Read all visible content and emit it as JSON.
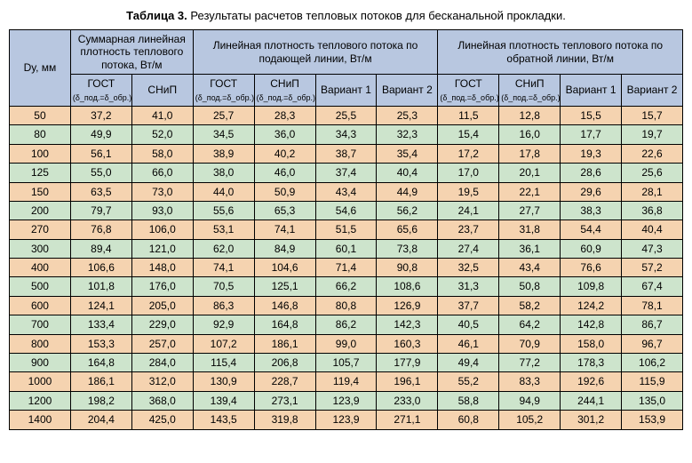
{
  "title_label": "Таблица 3.",
  "title_text": "Результаты расчетов тепловых потоков для бесканальной прокладки.",
  "headers": {
    "dy": "Dу, мм",
    "group1": "Суммарная линейная плотность теплового потока, Вт/м",
    "group2": "Линейная плотность теплового потока по подающей линии, Вт/м",
    "group3": "Линейная плотность теплового потока по обратной линии, Вт/м",
    "gost": "ГОСТ",
    "gost_sub": "(δ_под.=δ_обр.)",
    "snip": "СНиП",
    "snip_sub": "(δ_под.=δ_обр.)",
    "var1": "Вариант 1",
    "var2": "Вариант 2"
  },
  "columns_count": 11,
  "row_colors": {
    "odd": "#f5d3b0",
    "even": "#cde4cc"
  },
  "header_bg": "#b8c7e0",
  "rows": [
    [
      "50",
      "37,2",
      "41,0",
      "25,7",
      "28,3",
      "25,5",
      "25,3",
      "11,5",
      "12,8",
      "15,5",
      "15,7"
    ],
    [
      "80",
      "49,9",
      "52,0",
      "34,5",
      "36,0",
      "34,3",
      "32,3",
      "15,4",
      "16,0",
      "17,7",
      "19,7"
    ],
    [
      "100",
      "56,1",
      "58,0",
      "38,9",
      "40,2",
      "38,7",
      "35,4",
      "17,2",
      "17,8",
      "19,3",
      "22,6"
    ],
    [
      "125",
      "55,0",
      "66,0",
      "38,0",
      "46,0",
      "37,4",
      "40,4",
      "17,0",
      "20,1",
      "28,6",
      "25,6"
    ],
    [
      "150",
      "63,5",
      "73,0",
      "44,0",
      "50,9",
      "43,4",
      "44,9",
      "19,5",
      "22,1",
      "29,6",
      "28,1"
    ],
    [
      "200",
      "79,7",
      "93,0",
      "55,6",
      "65,3",
      "54,6",
      "56,2",
      "24,1",
      "27,7",
      "38,3",
      "36,8"
    ],
    [
      "270",
      "76,8",
      "106,0",
      "53,1",
      "74,1",
      "51,5",
      "65,6",
      "23,7",
      "31,8",
      "54,4",
      "40,4"
    ],
    [
      "300",
      "89,4",
      "121,0",
      "62,0",
      "84,9",
      "60,1",
      "73,8",
      "27,4",
      "36,1",
      "60,9",
      "47,3"
    ],
    [
      "400",
      "106,6",
      "148,0",
      "74,1",
      "104,6",
      "71,4",
      "90,8",
      "32,5",
      "43,4",
      "76,6",
      "57,2"
    ],
    [
      "500",
      "101,8",
      "176,0",
      "70,5",
      "125,1",
      "66,2",
      "108,6",
      "31,3",
      "50,8",
      "109,8",
      "67,4"
    ],
    [
      "600",
      "124,1",
      "205,0",
      "86,3",
      "146,8",
      "80,8",
      "126,9",
      "37,7",
      "58,2",
      "124,2",
      "78,1"
    ],
    [
      "700",
      "133,4",
      "229,0",
      "92,9",
      "164,8",
      "86,2",
      "142,3",
      "40,5",
      "64,2",
      "142,8",
      "86,7"
    ],
    [
      "800",
      "153,3",
      "257,0",
      "107,2",
      "186,1",
      "99,0",
      "160,3",
      "46,1",
      "70,9",
      "158,0",
      "96,7"
    ],
    [
      "900",
      "164,8",
      "284,0",
      "115,4",
      "206,8",
      "105,7",
      "177,9",
      "49,4",
      "77,2",
      "178,3",
      "106,2"
    ],
    [
      "1000",
      "186,1",
      "312,0",
      "130,9",
      "228,7",
      "119,4",
      "196,1",
      "55,2",
      "83,3",
      "192,6",
      "115,9"
    ],
    [
      "1200",
      "198,2",
      "368,0",
      "139,4",
      "273,1",
      "123,9",
      "233,0",
      "58,8",
      "94,9",
      "244,1",
      "135,0"
    ],
    [
      "1400",
      "204,4",
      "425,0",
      "143,5",
      "319,8",
      "123,9",
      "271,1",
      "60,8",
      "105,2",
      "301,2",
      "153,9"
    ]
  ]
}
